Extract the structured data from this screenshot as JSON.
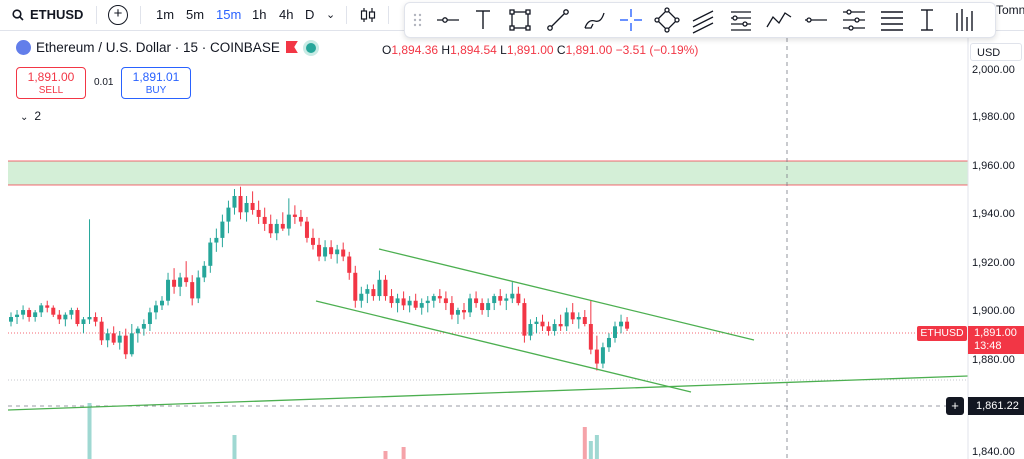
{
  "toolbar": {
    "symbol": "ETHUSD",
    "timeframes": [
      "1m",
      "5m",
      "15m",
      "1h",
      "4h",
      "D"
    ],
    "active_timeframe": "15m",
    "user_label": "Tomn"
  },
  "legend": {
    "title": "Ethereum / U.S. Dollar · 15 · COINBASE",
    "open_label": "O",
    "open": "1,894.36",
    "high_label": "H",
    "high": "1,894.54",
    "low_label": "L",
    "low": "1,891.00",
    "close_label": "C",
    "close": "1,891.00",
    "change": "−3.51 (−0.19%)"
  },
  "trade": {
    "sell_price": "1,891.00",
    "sell_label": "SELL",
    "spread": "0.01",
    "buy_price": "1,891.01",
    "buy_label": "BUY"
  },
  "indicators_toggle": "2",
  "price_axis": {
    "currency": "USD",
    "labels": [
      "2,000.00",
      "1,980.00",
      "1,960.00",
      "1,940.00",
      "1,920.00",
      "1,900.00",
      "1,880.00",
      "1,840.00"
    ],
    "symbol_tag": "ETHUSD",
    "current_price": "1,891.00",
    "countdown": "13:48",
    "crosshair_price": "1,861.22"
  },
  "colors": {
    "up": "#26a69a",
    "down": "#f23645",
    "zone_fill": "#d4efd7",
    "trendline": "#4caf50",
    "accent": "#2962ff"
  },
  "chart_data": {
    "type": "candlestick",
    "y_range": [
      1838,
      2003
    ],
    "zone": [
      1952,
      1962
    ],
    "candles": [
      [
        1894,
        1898,
        1892,
        1896
      ],
      [
        1896,
        1899,
        1893,
        1897
      ],
      [
        1897,
        1901,
        1895,
        1899
      ],
      [
        1899,
        1900,
        1894,
        1896
      ],
      [
        1896,
        1899,
        1894,
        1898
      ],
      [
        1898,
        1902,
        1896,
        1901
      ],
      [
        1901,
        1903,
        1898,
        1900
      ],
      [
        1900,
        1901,
        1896,
        1897
      ],
      [
        1897,
        1899,
        1893,
        1895
      ],
      [
        1895,
        1898,
        1892,
        1897
      ],
      [
        1897,
        1900,
        1895,
        1899
      ],
      [
        1899,
        1900,
        1892,
        1893
      ],
      [
        1893,
        1896,
        1889,
        1895
      ],
      [
        1895,
        1938,
        1893,
        1896
      ],
      [
        1896,
        1898,
        1892,
        1894
      ],
      [
        1894,
        1896,
        1884,
        1886
      ],
      [
        1886,
        1891,
        1883,
        1889
      ],
      [
        1889,
        1892,
        1884,
        1885
      ],
      [
        1885,
        1890,
        1882,
        1888
      ],
      [
        1888,
        1891,
        1878,
        1880
      ],
      [
        1880,
        1893,
        1879,
        1889
      ],
      [
        1889,
        1892,
        1885,
        1891
      ],
      [
        1891,
        1895,
        1888,
        1893
      ],
      [
        1893,
        1900,
        1890,
        1898
      ],
      [
        1898,
        1903,
        1895,
        1901
      ],
      [
        1901,
        1905,
        1899,
        1903
      ],
      [
        1903,
        1915,
        1901,
        1912
      ],
      [
        1912,
        1917,
        1906,
        1909
      ],
      [
        1909,
        1915,
        1905,
        1913
      ],
      [
        1913,
        1920,
        1909,
        1911
      ],
      [
        1911,
        1914,
        1901,
        1904
      ],
      [
        1904,
        1916,
        1902,
        1913
      ],
      [
        1913,
        1920,
        1911,
        1918
      ],
      [
        1918,
        1930,
        1915,
        1928
      ],
      [
        1928,
        1934,
        1924,
        1930
      ],
      [
        1930,
        1940,
        1926,
        1937
      ],
      [
        1937,
        1946,
        1932,
        1943
      ],
      [
        1943,
        1951,
        1940,
        1948
      ],
      [
        1948,
        1952,
        1938,
        1941
      ],
      [
        1941,
        1948,
        1937,
        1945
      ],
      [
        1945,
        1950,
        1940,
        1942
      ],
      [
        1942,
        1946,
        1936,
        1939
      ],
      [
        1939,
        1943,
        1933,
        1936
      ],
      [
        1936,
        1940,
        1930,
        1932
      ],
      [
        1932,
        1938,
        1929,
        1936
      ],
      [
        1936,
        1941,
        1933,
        1934
      ],
      [
        1934,
        1947,
        1931,
        1940
      ],
      [
        1940,
        1944,
        1936,
        1939
      ],
      [
        1939,
        1942,
        1935,
        1937
      ],
      [
        1937,
        1939,
        1928,
        1930
      ],
      [
        1930,
        1934,
        1925,
        1927
      ],
      [
        1927,
        1930,
        1920,
        1922
      ],
      [
        1922,
        1929,
        1920,
        1926
      ],
      [
        1926,
        1929,
        1921,
        1923
      ],
      [
        1923,
        1927,
        1919,
        1925
      ],
      [
        1925,
        1928,
        1920,
        1922
      ],
      [
        1922,
        1924,
        1912,
        1915
      ],
      [
        1915,
        1918,
        1900,
        1903
      ],
      [
        1903,
        1909,
        1900,
        1906
      ],
      [
        1906,
        1910,
        1902,
        1908
      ],
      [
        1908,
        1910,
        1903,
        1905
      ],
      [
        1905,
        1916,
        1903,
        1912
      ],
      [
        1912,
        1914,
        1903,
        1905
      ],
      [
        1905,
        1908,
        1900,
        1902
      ],
      [
        1902,
        1906,
        1898,
        1904
      ],
      [
        1904,
        1907,
        1899,
        1901
      ],
      [
        1901,
        1905,
        1898,
        1903
      ],
      [
        1903,
        1906,
        1899,
        1900
      ],
      [
        1900,
        1904,
        1897,
        1902
      ],
      [
        1902,
        1905,
        1898,
        1903
      ],
      [
        1903,
        1906,
        1900,
        1905
      ],
      [
        1905,
        1908,
        1902,
        1904
      ],
      [
        1904,
        1907,
        1899,
        1902
      ],
      [
        1902,
        1905,
        1895,
        1897
      ],
      [
        1897,
        1900,
        1893,
        1899
      ],
      [
        1899,
        1902,
        1895,
        1898
      ],
      [
        1898,
        1906,
        1896,
        1904
      ],
      [
        1904,
        1907,
        1900,
        1902
      ],
      [
        1902,
        1904,
        1897,
        1899
      ],
      [
        1899,
        1904,
        1896,
        1902
      ],
      [
        1902,
        1906,
        1899,
        1905
      ],
      [
        1905,
        1908,
        1901,
        1903
      ],
      [
        1903,
        1906,
        1899,
        1904
      ],
      [
        1904,
        1911,
        1902,
        1906
      ],
      [
        1906,
        1909,
        1901,
        1902
      ],
      [
        1902,
        1904,
        1885,
        1888
      ],
      [
        1888,
        1895,
        1886,
        1893
      ],
      [
        1893,
        1896,
        1889,
        1894
      ],
      [
        1894,
        1897,
        1890,
        1892
      ],
      [
        1892,
        1894,
        1888,
        1890
      ],
      [
        1890,
        1895,
        1888,
        1893
      ],
      [
        1893,
        1897,
        1890,
        1892
      ],
      [
        1892,
        1900,
        1890,
        1898
      ],
      [
        1898,
        1902,
        1893,
        1895
      ],
      [
        1895,
        1898,
        1891,
        1896
      ],
      [
        1896,
        1899,
        1892,
        1893
      ],
      [
        1893,
        1903,
        1880,
        1882
      ],
      [
        1882,
        1888,
        1873,
        1876
      ],
      [
        1876,
        1885,
        1874,
        1883
      ],
      [
        1883,
        1889,
        1881,
        1887
      ],
      [
        1887,
        1894,
        1885,
        1892
      ],
      [
        1892,
        1897,
        1889,
        1894
      ],
      [
        1894,
        1896,
        1890,
        1891
      ]
    ],
    "volumes": [
      {
        "index": 13,
        "value": 28,
        "direction": "up"
      },
      {
        "index": 37,
        "value": 12,
        "direction": "up"
      },
      {
        "index": 62,
        "value": 4,
        "direction": "down"
      },
      {
        "index": 65,
        "value": 6,
        "direction": "down"
      },
      {
        "index": 95,
        "value": 16,
        "direction": "down"
      },
      {
        "index": 96,
        "value": 9,
        "direction": "up"
      },
      {
        "index": 97,
        "value": 12,
        "direction": "up"
      }
    ]
  }
}
